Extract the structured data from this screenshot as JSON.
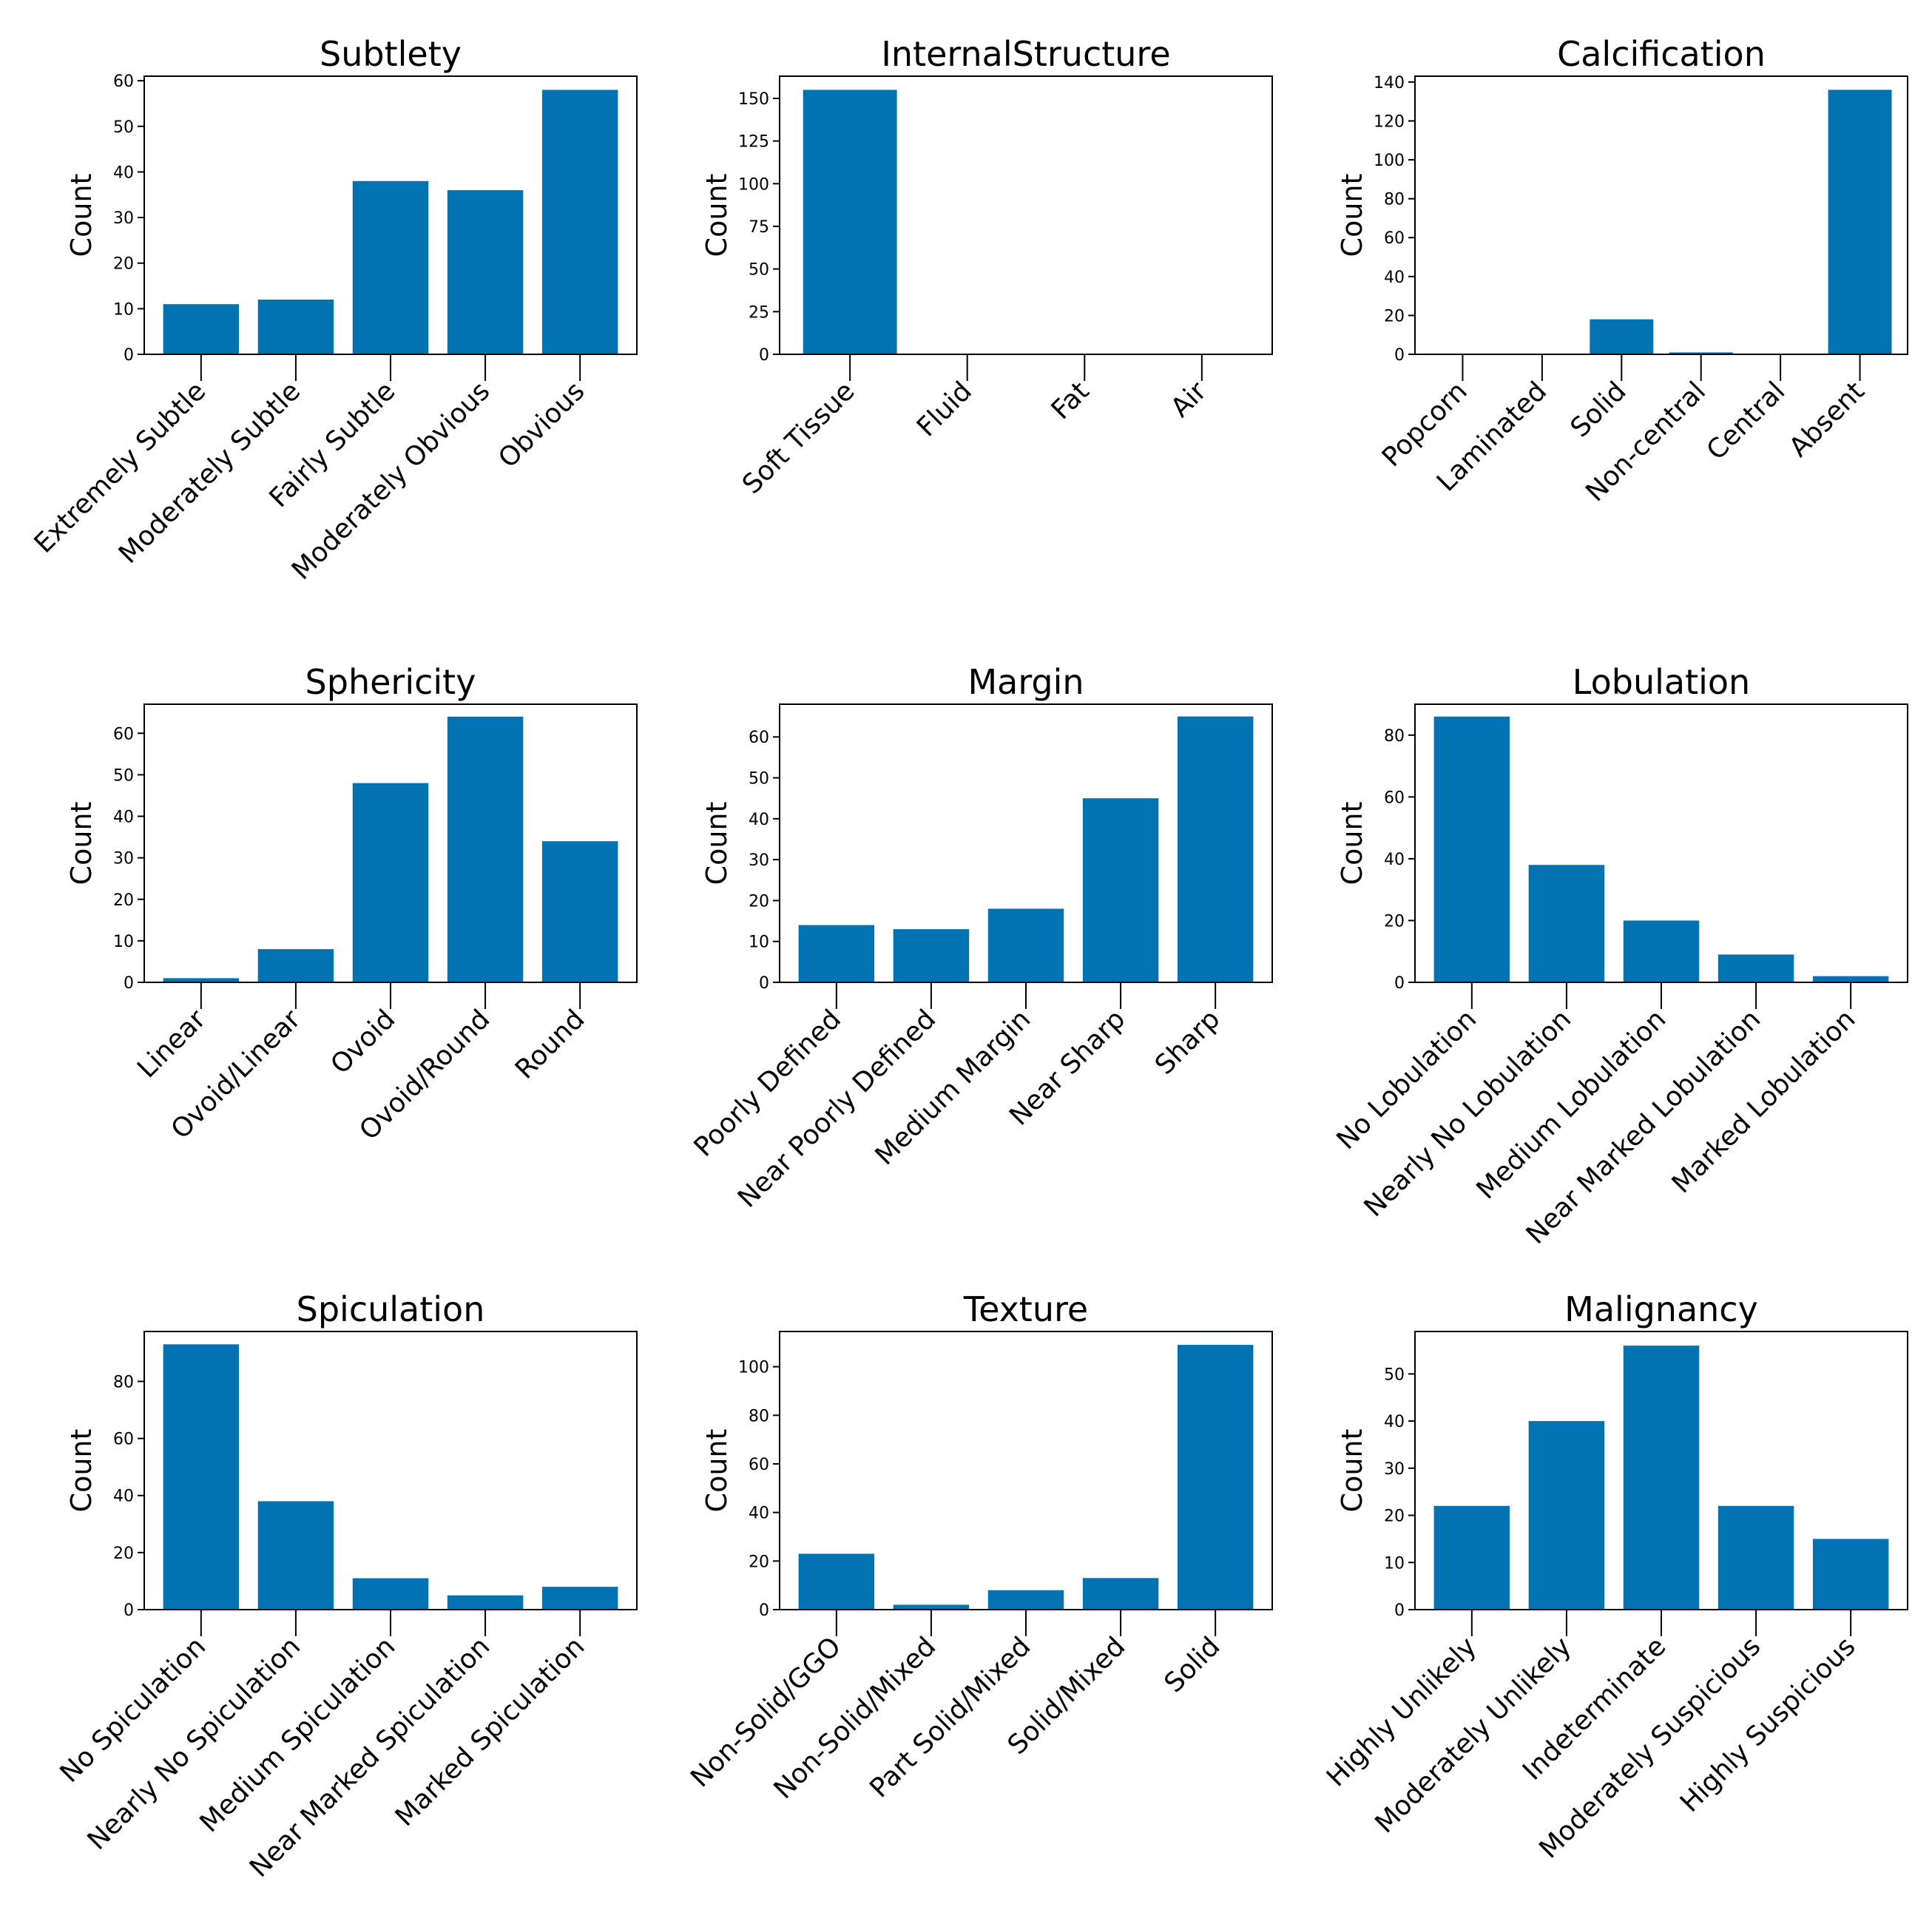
{
  "figure": {
    "bar_color": "#0173b2"
  },
  "chart_data": [
    {
      "type": "bar",
      "title": "Subtlety",
      "ylabel": "Count",
      "categories": [
        "Extremely Subtle",
        "Moderately Subtle",
        "Fairly Subtle",
        "Moderately Obvious",
        "Obvious"
      ],
      "values": [
        11,
        12,
        38,
        36,
        58
      ],
      "ylim": [
        0,
        61
      ],
      "yticks": [
        0,
        10,
        20,
        30,
        40,
        50,
        60
      ],
      "grid": false
    },
    {
      "type": "bar",
      "title": "InternalStructure",
      "ylabel": "Count",
      "categories": [
        "Soft Tissue",
        "Fluid",
        "Fat",
        "Air"
      ],
      "values": [
        155,
        0,
        0,
        0
      ],
      "ylim": [
        0,
        163
      ],
      "yticks": [
        0,
        25,
        50,
        75,
        100,
        125,
        150
      ],
      "grid": false
    },
    {
      "type": "bar",
      "title": "Calcification",
      "ylabel": "Count",
      "categories": [
        "Popcorn",
        "Laminated",
        "Solid",
        "Non-central",
        "Central",
        "Absent"
      ],
      "values": [
        0,
        0,
        18,
        1,
        0,
        136
      ],
      "ylim": [
        0,
        143
      ],
      "yticks": [
        0,
        20,
        40,
        60,
        80,
        100,
        120,
        140
      ],
      "grid": false
    },
    {
      "type": "bar",
      "title": "Sphericity",
      "ylabel": "Count",
      "categories": [
        "Linear",
        "Ovoid/Linear",
        "Ovoid",
        "Ovoid/Round",
        "Round"
      ],
      "values": [
        1,
        8,
        48,
        64,
        34
      ],
      "ylim": [
        0,
        67
      ],
      "yticks": [
        0,
        10,
        20,
        30,
        40,
        50,
        60
      ],
      "grid": false
    },
    {
      "type": "bar",
      "title": "Margin",
      "ylabel": "Count",
      "categories": [
        "Poorly Defined",
        "Near Poorly Defined",
        "Medium Margin",
        "Near Sharp",
        "Sharp"
      ],
      "values": [
        14,
        13,
        18,
        45,
        65
      ],
      "ylim": [
        0,
        68
      ],
      "yticks": [
        0,
        10,
        20,
        30,
        40,
        50,
        60
      ],
      "grid": false
    },
    {
      "type": "bar",
      "title": "Lobulation",
      "ylabel": "Count",
      "categories": [
        "No Lobulation",
        "Nearly No Lobulation",
        "Medium Lobulation",
        "Near Marked Lobulation",
        "Marked Lobulation"
      ],
      "values": [
        86,
        38,
        20,
        9,
        2
      ],
      "ylim": [
        0,
        90
      ],
      "yticks": [
        0,
        20,
        40,
        60,
        80
      ],
      "grid": false
    },
    {
      "type": "bar",
      "title": "Spiculation",
      "ylabel": "Count",
      "categories": [
        "No Spiculation",
        "Nearly No Spiculation",
        "Medium Spiculation",
        "Near Marked Spiculation",
        "Marked Spiculation"
      ],
      "values": [
        93,
        38,
        11,
        5,
        8
      ],
      "ylim": [
        0,
        97.5
      ],
      "yticks": [
        0,
        20,
        40,
        60,
        80
      ],
      "grid": false
    },
    {
      "type": "bar",
      "title": "Texture",
      "ylabel": "Count",
      "categories": [
        "Non-Solid/GGO",
        "Non-Solid/Mixed",
        "Part Solid/Mixed",
        "Solid/Mixed",
        "Solid"
      ],
      "values": [
        23,
        2,
        8,
        13,
        109
      ],
      "ylim": [
        0,
        114.5
      ],
      "yticks": [
        0,
        20,
        40,
        60,
        80,
        100
      ],
      "grid": false
    },
    {
      "type": "bar",
      "title": "Malignancy",
      "ylabel": "Count",
      "categories": [
        "Highly Unlikely",
        "Moderately Unlikely",
        "Indeterminate",
        "Moderately Suspicious",
        "Highly Suspicious"
      ],
      "values": [
        22,
        40,
        56,
        22,
        15
      ],
      "ylim": [
        0,
        59
      ],
      "yticks": [
        0,
        10,
        20,
        30,
        40,
        50
      ],
      "grid": false
    }
  ]
}
